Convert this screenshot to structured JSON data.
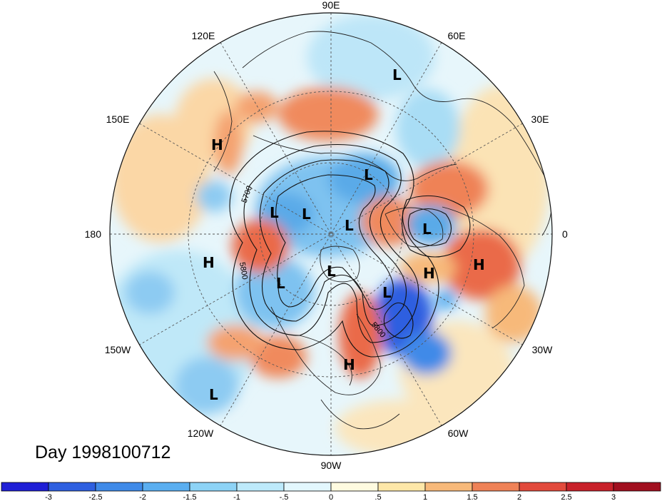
{
  "day_label": "Day 1998100712",
  "longitude_labels": [
    "90E",
    "60E",
    "30E",
    "0",
    "30W",
    "60W",
    "90W",
    "120W",
    "150W",
    "180",
    "150E",
    "120E"
  ],
  "contour_labels": [
    "5700",
    "5800",
    "5800"
  ],
  "pressure_centers": [
    "L",
    "L",
    "L",
    "L",
    "L",
    "L",
    "L",
    "L",
    "L",
    "L",
    "H",
    "H",
    "H",
    "H",
    "H"
  ],
  "colorbar": {
    "ticks": [
      "-3",
      "-2.5",
      "-2",
      "-1.5",
      "-1",
      "-.5",
      "0",
      ".5",
      "1",
      "1.5",
      "2",
      "2.5",
      "3"
    ],
    "colors": [
      "#1f1fd6",
      "#2e5fe0",
      "#3f8ae8",
      "#5aaef0",
      "#8dd3f6",
      "#bdeafb",
      "#e3f7fd",
      "#fffbe0",
      "#fde7a8",
      "#f7b97a",
      "#ef8257",
      "#e24a3c",
      "#c8212a",
      "#a10f1f"
    ]
  },
  "colors": {
    "low_strong": "#2b4fd8",
    "low_mid": "#7fc3f2",
    "low_weak": "#c8eefb",
    "high_weak": "#fde6b6",
    "high_mid": "#f4a26f",
    "high_strong": "#e24a3c"
  }
}
